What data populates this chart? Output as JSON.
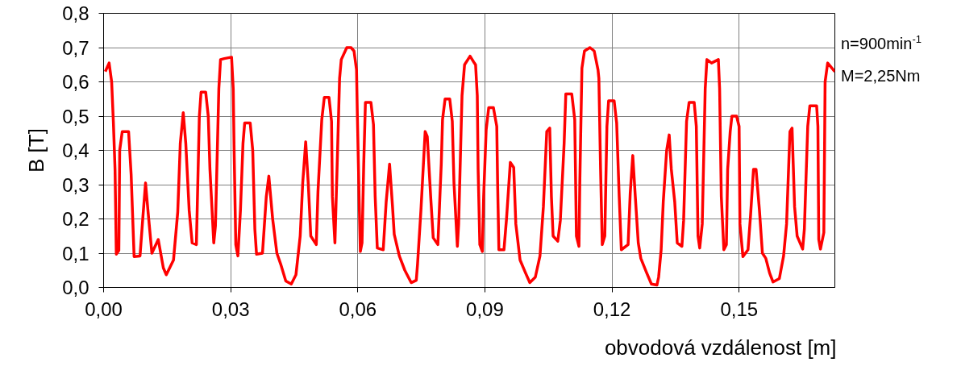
{
  "chart_data": {
    "type": "line",
    "xlabel": "obvodová vzdálenost [m]",
    "ylabel": "B [T]",
    "annotations": [
      "n=900min$^{-1}$",
      "M=2,25Nm"
    ],
    "xlim": [
      0,
      0.1726
    ],
    "ylim": [
      0,
      0.8
    ],
    "xticks": [
      {
        "value": 0,
        "label": "0,00"
      },
      {
        "value": 0.03,
        "label": "0,03"
      },
      {
        "value": 0.06,
        "label": "0,06"
      },
      {
        "value": 0.09,
        "label": "0,09"
      },
      {
        "value": 0.12,
        "label": "0,12"
      },
      {
        "value": 0.15,
        "label": "0,15"
      }
    ],
    "yticks": [
      {
        "value": 0,
        "label": "0,0"
      },
      {
        "value": 0.1,
        "label": "0,1"
      },
      {
        "value": 0.2,
        "label": "0,2"
      },
      {
        "value": 0.3,
        "label": "0,3"
      },
      {
        "value": 0.4,
        "label": "0,4"
      },
      {
        "value": 0.5,
        "label": "0,5"
      },
      {
        "value": 0.6,
        "label": "0,6"
      },
      {
        "value": 0.7,
        "label": "0,7"
      },
      {
        "value": 0.8,
        "label": "0,8"
      }
    ],
    "grid": true,
    "marker": "none",
    "line_style": "solid",
    "series": [
      {
        "color": "#ff0000",
        "x": [
          0.0004,
          0.0013,
          0.0019,
          0.0023,
          0.0027,
          0.003,
          0.0036,
          0.0038,
          0.0044,
          0.0059,
          0.0065,
          0.0072,
          0.0086,
          0.0093,
          0.0099,
          0.0105,
          0.0114,
          0.0129,
          0.0141,
          0.0148,
          0.0165,
          0.0175,
          0.0181,
          0.0188,
          0.0194,
          0.0202,
          0.0209,
          0.0219,
          0.0226,
          0.023,
          0.0241,
          0.0247,
          0.0251,
          0.026,
          0.0264,
          0.0272,
          0.0276,
          0.0285,
          0.0302,
          0.0306,
          0.0308,
          0.0312,
          0.0317,
          0.0323,
          0.0329,
          0.0333,
          0.0346,
          0.0352,
          0.0357,
          0.0361,
          0.0375,
          0.0384,
          0.039,
          0.0399,
          0.0409,
          0.0418,
          0.043,
          0.0443,
          0.0454,
          0.0464,
          0.047,
          0.0477,
          0.0483,
          0.0489,
          0.0502,
          0.0506,
          0.0515,
          0.0521,
          0.0532,
          0.0538,
          0.054,
          0.0546,
          0.0551,
          0.0557,
          0.0561,
          0.0574,
          0.0584,
          0.0591,
          0.0597,
          0.0599,
          0.0603,
          0.0606,
          0.061,
          0.0614,
          0.0618,
          0.0631,
          0.0637,
          0.0641,
          0.0646,
          0.066,
          0.0667,
          0.0675,
          0.0682,
          0.0686,
          0.0698,
          0.0711,
          0.0726,
          0.0738,
          0.0741,
          0.0749,
          0.0759,
          0.0764,
          0.0772,
          0.0778,
          0.0789,
          0.0797,
          0.08,
          0.0806,
          0.0817,
          0.0823,
          0.0827,
          0.0835,
          0.0838,
          0.0846,
          0.0852,
          0.0865,
          0.0875,
          0.0878,
          0.0882,
          0.0884,
          0.0888,
          0.0894,
          0.0897,
          0.0903,
          0.0909,
          0.092,
          0.0928,
          0.093,
          0.0933,
          0.0945,
          0.0951,
          0.096,
          0.0968,
          0.0973,
          0.0983,
          0.0996,
          0.1006,
          0.1019,
          0.103,
          0.1038,
          0.1046,
          0.1053,
          0.1057,
          0.1061,
          0.1072,
          0.1078,
          0.1087,
          0.1091,
          0.1105,
          0.1112,
          0.1116,
          0.1122,
          0.1124,
          0.1129,
          0.1135,
          0.1148,
          0.1158,
          0.1167,
          0.1169,
          0.1173,
          0.1177,
          0.1183,
          0.1188,
          0.1192,
          0.1205,
          0.1211,
          0.1217,
          0.1222,
          0.1238,
          0.1243,
          0.1249,
          0.1255,
          0.1262,
          0.1268,
          0.1281,
          0.1293,
          0.1306,
          0.131,
          0.1316,
          0.1321,
          0.1329,
          0.1335,
          0.134,
          0.1348,
          0.1354,
          0.1365,
          0.1369,
          0.1376,
          0.1382,
          0.1394,
          0.1399,
          0.1403,
          0.1407,
          0.1413,
          0.142,
          0.1424,
          0.1435,
          0.1451,
          0.1454,
          0.1458,
          0.1464,
          0.147,
          0.1473,
          0.1479,
          0.1483,
          0.1494,
          0.15,
          0.1502,
          0.1509,
          0.1521,
          0.1527,
          0.1534,
          0.154,
          0.1548,
          0.1555,
          0.1563,
          0.1572,
          0.158,
          0.1595,
          0.1605,
          0.1612,
          0.162,
          0.1625,
          0.1631,
          0.1637,
          0.165,
          0.1654,
          0.1662,
          0.1667,
          0.1683,
          0.1686,
          0.1688,
          0.1692,
          0.17,
          0.1703,
          0.1709,
          0.1726
        ],
        "values": [
          0.63,
          0.655,
          0.6,
          0.485,
          0.345,
          0.097,
          0.108,
          0.4,
          0.455,
          0.455,
          0.33,
          0.09,
          0.092,
          0.21,
          0.305,
          0.22,
          0.1,
          0.14,
          0.057,
          0.037,
          0.08,
          0.22,
          0.42,
          0.51,
          0.42,
          0.225,
          0.13,
          0.125,
          0.5,
          0.57,
          0.57,
          0.5,
          0.345,
          0.13,
          0.18,
          0.58,
          0.665,
          0.668,
          0.672,
          0.58,
          0.405,
          0.125,
          0.092,
          0.225,
          0.42,
          0.48,
          0.48,
          0.4,
          0.17,
          0.097,
          0.1,
          0.265,
          0.325,
          0.2,
          0.1,
          0.068,
          0.019,
          0.01,
          0.037,
          0.15,
          0.305,
          0.425,
          0.305,
          0.15,
          0.125,
          0.28,
          0.49,
          0.555,
          0.555,
          0.485,
          0.265,
          0.13,
          0.345,
          0.61,
          0.665,
          0.7,
          0.7,
          0.69,
          0.635,
          0.5,
          0.265,
          0.105,
          0.13,
          0.36,
          0.54,
          0.54,
          0.475,
          0.265,
          0.115,
          0.11,
          0.25,
          0.36,
          0.235,
          0.155,
          0.092,
          0.05,
          0.014,
          0.021,
          0.068,
          0.225,
          0.455,
          0.44,
          0.265,
          0.145,
          0.125,
          0.36,
          0.49,
          0.55,
          0.55,
          0.485,
          0.305,
          0.12,
          0.185,
          0.56,
          0.65,
          0.675,
          0.655,
          0.65,
          0.56,
          0.345,
          0.125,
          0.105,
          0.265,
          0.46,
          0.525,
          0.525,
          0.47,
          0.305,
          0.11,
          0.11,
          0.2,
          0.365,
          0.35,
          0.185,
          0.08,
          0.042,
          0.014,
          0.03,
          0.092,
          0.235,
          0.455,
          0.465,
          0.265,
          0.15,
          0.135,
          0.195,
          0.42,
          0.565,
          0.565,
          0.49,
          0.15,
          0.12,
          0.305,
          0.64,
          0.69,
          0.7,
          0.69,
          0.635,
          0.61,
          0.345,
          0.125,
          0.15,
          0.47,
          0.545,
          0.545,
          0.48,
          0.265,
          0.11,
          0.125,
          0.275,
          0.385,
          0.265,
          0.13,
          0.085,
          0.045,
          0.01,
          0.007,
          0.03,
          0.11,
          0.25,
          0.4,
          0.445,
          0.345,
          0.25,
          0.13,
          0.12,
          0.195,
          0.485,
          0.54,
          0.54,
          0.47,
          0.15,
          0.115,
          0.185,
          0.58,
          0.665,
          0.655,
          0.665,
          0.58,
          0.265,
          0.11,
          0.125,
          0.345,
          0.455,
          0.5,
          0.5,
          0.47,
          0.185,
          0.09,
          0.11,
          0.21,
          0.345,
          0.345,
          0.225,
          0.1,
          0.085,
          0.042,
          0.016,
          0.026,
          0.092,
          0.185,
          0.455,
          0.465,
          0.235,
          0.15,
          0.112,
          0.17,
          0.47,
          0.53,
          0.53,
          0.47,
          0.14,
          0.112,
          0.16,
          0.6,
          0.655,
          0.63
        ]
      }
    ]
  }
}
